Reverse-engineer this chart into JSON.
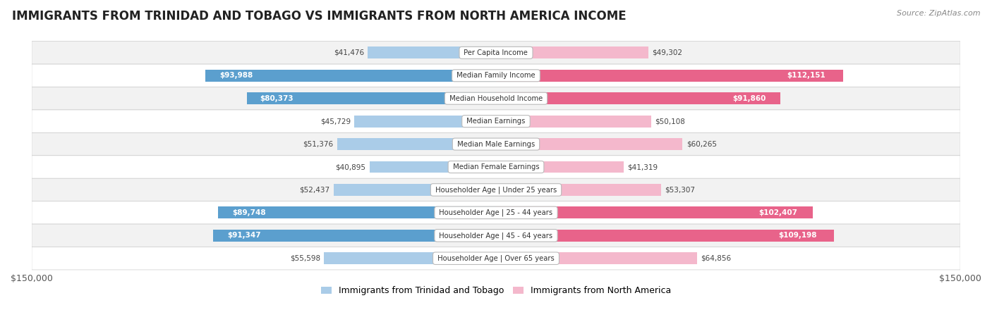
{
  "title": "IMMIGRANTS FROM TRINIDAD AND TOBAGO VS IMMIGRANTS FROM NORTH AMERICA INCOME",
  "source": "Source: ZipAtlas.com",
  "categories": [
    "Per Capita Income",
    "Median Family Income",
    "Median Household Income",
    "Median Earnings",
    "Median Male Earnings",
    "Median Female Earnings",
    "Householder Age | Under 25 years",
    "Householder Age | 25 - 44 years",
    "Householder Age | 45 - 64 years",
    "Householder Age | Over 65 years"
  ],
  "trinidad_values": [
    41476,
    93988,
    80373,
    45729,
    51376,
    40895,
    52437,
    89748,
    91347,
    55598
  ],
  "north_america_values": [
    49302,
    112151,
    91860,
    50108,
    60265,
    41319,
    53307,
    102407,
    109198,
    64856
  ],
  "color_trinidad_light": "#aacce8",
  "color_trinidad_dark": "#5b9fce",
  "color_north_america_light": "#f4b8cc",
  "color_north_america_dark": "#e8638a",
  "max_value": 150000,
  "legend_label_trinidad": "Immigrants from Trinidad and Tobago",
  "legend_label_north_america": "Immigrants from North America",
  "trinidad_inside_threshold": 65000,
  "north_america_inside_threshold": 65000,
  "row_colors": [
    "#f2f2f2",
    "#ffffff"
  ]
}
